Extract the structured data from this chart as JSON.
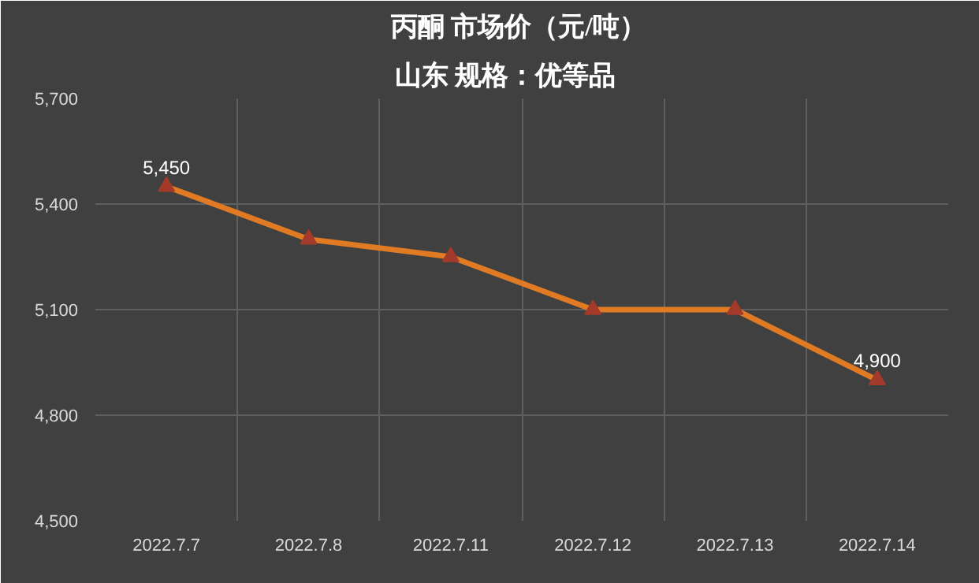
{
  "chart_data": {
    "type": "line",
    "title": "丙酮  市场价（元/吨）",
    "subtitle": "山东      规格：优等品",
    "categories": [
      "2022.7.7",
      "2022.7.8",
      "2022.7.11",
      "2022.7.12",
      "2022.7.13",
      "2022.7.14"
    ],
    "series": [
      {
        "color": "#e07b24",
        "values": [
          5450,
          5300,
          5250,
          5100,
          5100,
          4900
        ],
        "value_labels": [
          "5,450",
          null,
          null,
          null,
          null,
          "4,900"
        ]
      }
    ],
    "ylim": [
      4500,
      5700
    ],
    "yticks": [
      {
        "value": 4500,
        "label": "4,500"
      },
      {
        "value": 4800,
        "label": "4,800"
      },
      {
        "value": 5100,
        "label": "5,100"
      },
      {
        "value": 5400,
        "label": "5,400"
      },
      {
        "value": 5700,
        "label": "5,700"
      }
    ],
    "grid": true,
    "marker": "triangle"
  }
}
